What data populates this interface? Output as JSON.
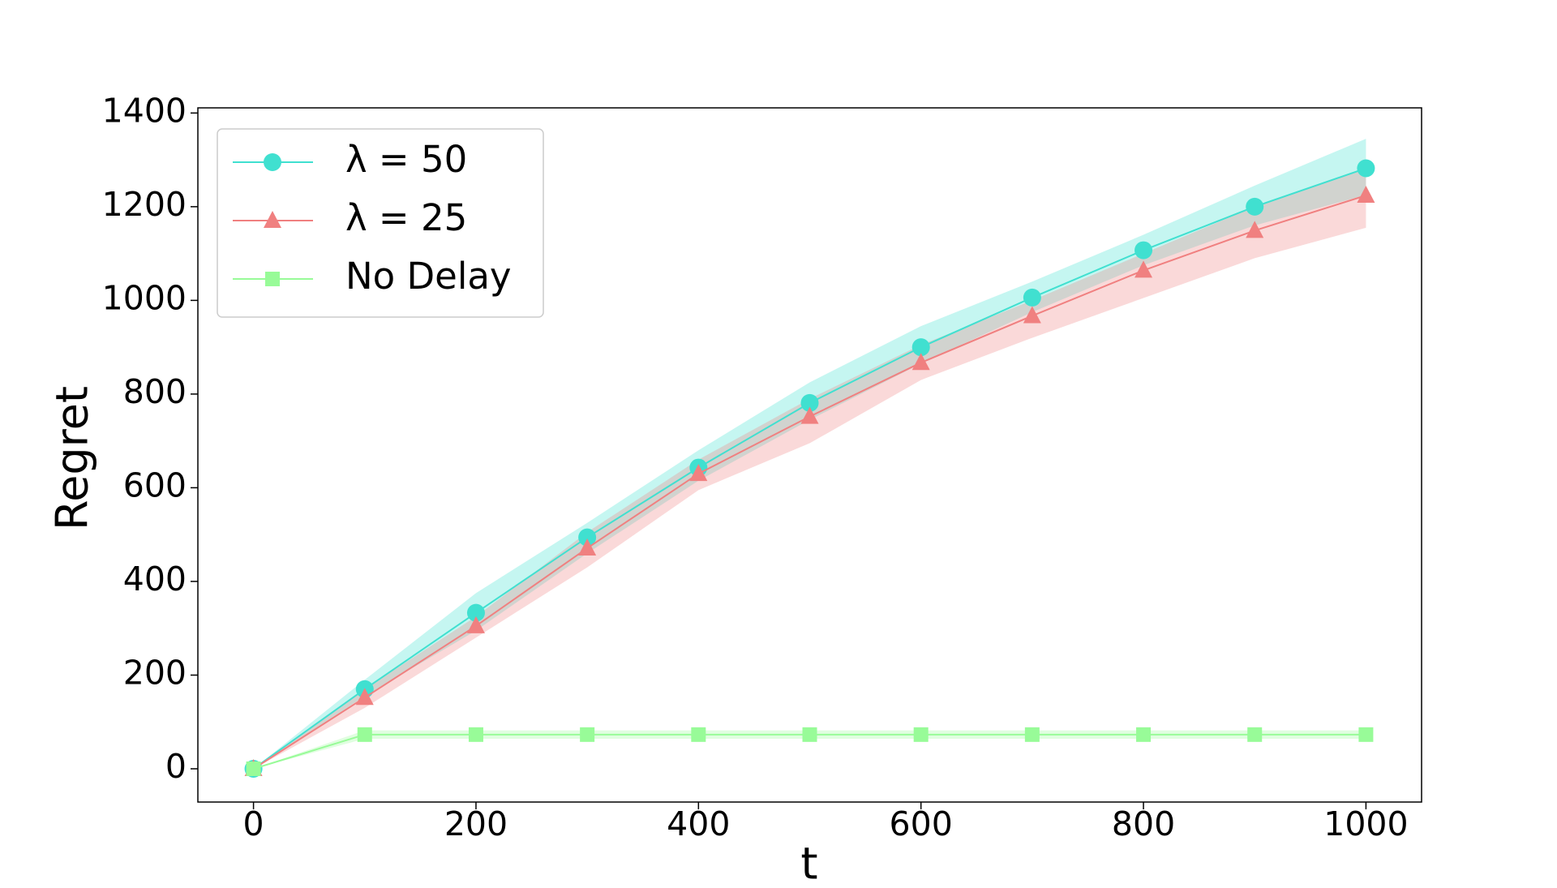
{
  "chart_data": {
    "type": "line",
    "x_label": "t",
    "y_label": "Regret",
    "x": [
      0,
      100,
      200,
      300,
      400,
      500,
      600,
      700,
      800,
      900,
      1000
    ],
    "xlim": [
      -50,
      1050
    ],
    "xticks": [
      0,
      200,
      400,
      600,
      800,
      1000
    ],
    "ylim": [
      -71,
      1411
    ],
    "yticks": [
      0,
      200,
      400,
      600,
      800,
      1000,
      1200,
      1400
    ],
    "legend": "upper left",
    "series": [
      {
        "name": "λ = 50",
        "color": "#40e0d0",
        "marker": "circle",
        "values": [
          0,
          170,
          333,
          494,
          643,
          781,
          900,
          1006,
          1107,
          1200,
          1282
        ],
        "upper": [
          0,
          190,
          375,
          525,
          680,
          825,
          945,
          1040,
          1140,
          1245,
          1345
        ],
        "lower": [
          0,
          155,
          295,
          460,
          615,
          745,
          865,
          975,
          1075,
          1160,
          1225
        ]
      },
      {
        "name": "λ = 25",
        "color": "#f08080",
        "marker": "triangle",
        "values": [
          0,
          152,
          305,
          471,
          630,
          752,
          867,
          967,
          1064,
          1149,
          1224
        ],
        "upper": [
          0,
          170,
          325,
          505,
          660,
          790,
          905,
          1000,
          1100,
          1200,
          1280
        ],
        "lower": [
          0,
          130,
          280,
          430,
          595,
          695,
          830,
          920,
          1005,
          1090,
          1155
        ]
      },
      {
        "name": "No Delay",
        "color": "#98fb98",
        "marker": "square",
        "values": [
          0,
          73,
          73,
          73,
          73,
          73,
          73,
          73,
          73,
          73,
          73
        ],
        "upper": [
          0,
          82,
          82,
          82,
          82,
          82,
          82,
          82,
          82,
          82,
          82
        ],
        "lower": [
          0,
          64,
          64,
          64,
          64,
          64,
          64,
          64,
          64,
          64,
          64
        ]
      }
    ]
  }
}
